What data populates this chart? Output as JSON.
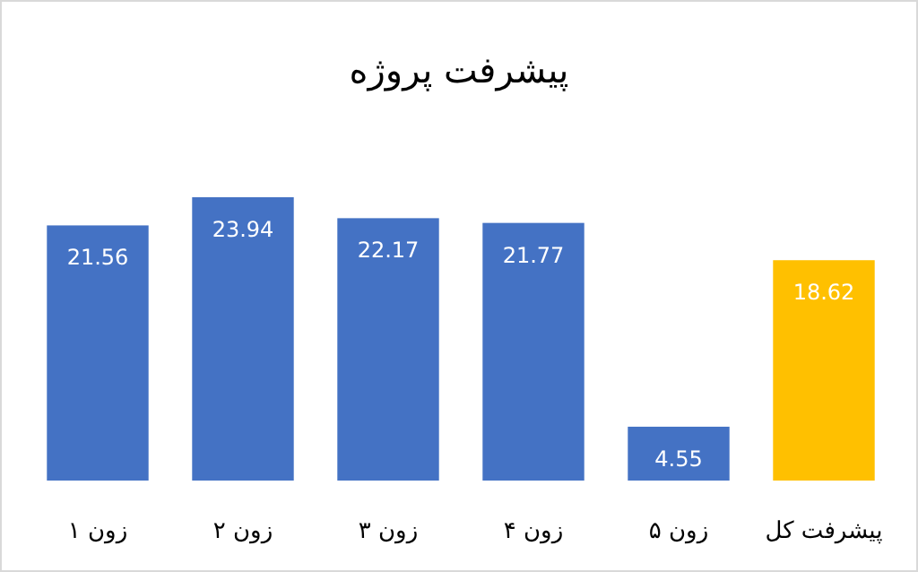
{
  "chart_data": {
    "type": "bar",
    "title": "پیشرفت پروژه",
    "categories": [
      "زون ۱",
      "زون ۲",
      "زون ۳",
      "زون ۴",
      "زون ۵",
      "پیشرفت کل"
    ],
    "values": [
      21.56,
      23.94,
      22.17,
      21.77,
      4.55,
      18.62
    ],
    "colors": [
      "#4472c4",
      "#4472c4",
      "#4472c4",
      "#4472c4",
      "#4472c4",
      "#ffc000"
    ],
    "data_labels": true
  }
}
